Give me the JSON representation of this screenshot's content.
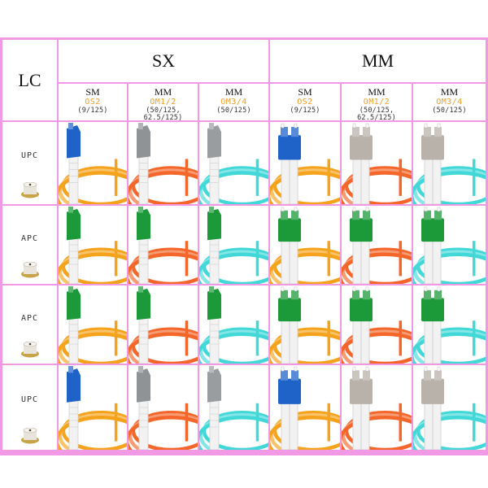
{
  "corner_label": "LC",
  "groups": [
    "SX",
    "MM"
  ],
  "columns": [
    {
      "fiber": "SM",
      "grade": "OS2",
      "core": "(9/125)",
      "cable_color": "#f5a31c",
      "style": "simplex"
    },
    {
      "fiber": "MM",
      "grade": "OM1/2",
      "core": "(50/125, 62.5/125)",
      "cable_color": "#f4662a",
      "style": "simplex"
    },
    {
      "fiber": "MM",
      "grade": "OM3/4",
      "core": "(50/125)",
      "cable_color": "#42d8d8",
      "style": "simplex"
    },
    {
      "fiber": "SM",
      "grade": "OS2",
      "core": "(9/125)",
      "cable_color": "#f5a31c",
      "style": "duplex"
    },
    {
      "fiber": "MM",
      "grade": "OM1/2",
      "core": "(50/125, 62.5/125)",
      "cable_color": "#f4662a",
      "style": "duplex"
    },
    {
      "fiber": "MM",
      "grade": "OM3/4",
      "core": "(50/125)",
      "cable_color": "#42d8d8",
      "style": "duplex"
    }
  ],
  "rows": [
    {
      "polish": "UPC",
      "connector_colors": [
        "#1f63c9",
        "#8f9396",
        "#9a9da0",
        "#1f63c9",
        "#b9b2aa",
        "#b9b2aa"
      ]
    },
    {
      "polish": "APC",
      "connector_colors": [
        "#1c9a3a",
        "#1c9a3a",
        "#1c9a3a",
        "#1c9a3a",
        "#1c9a3a",
        "#1c9a3a"
      ]
    },
    {
      "polish": "APC",
      "connector_colors": [
        "#1c9a3a",
        "#1c9a3a",
        "#1c9a3a",
        "#1c9a3a",
        "#1c9a3a",
        "#1c9a3a"
      ]
    },
    {
      "polish": "UPC",
      "connector_colors": [
        "#1f63c9",
        "#8f9396",
        "#9a9da0",
        "#1f63c9",
        "#b9b2aa",
        "#b9b2aa"
      ]
    }
  ]
}
